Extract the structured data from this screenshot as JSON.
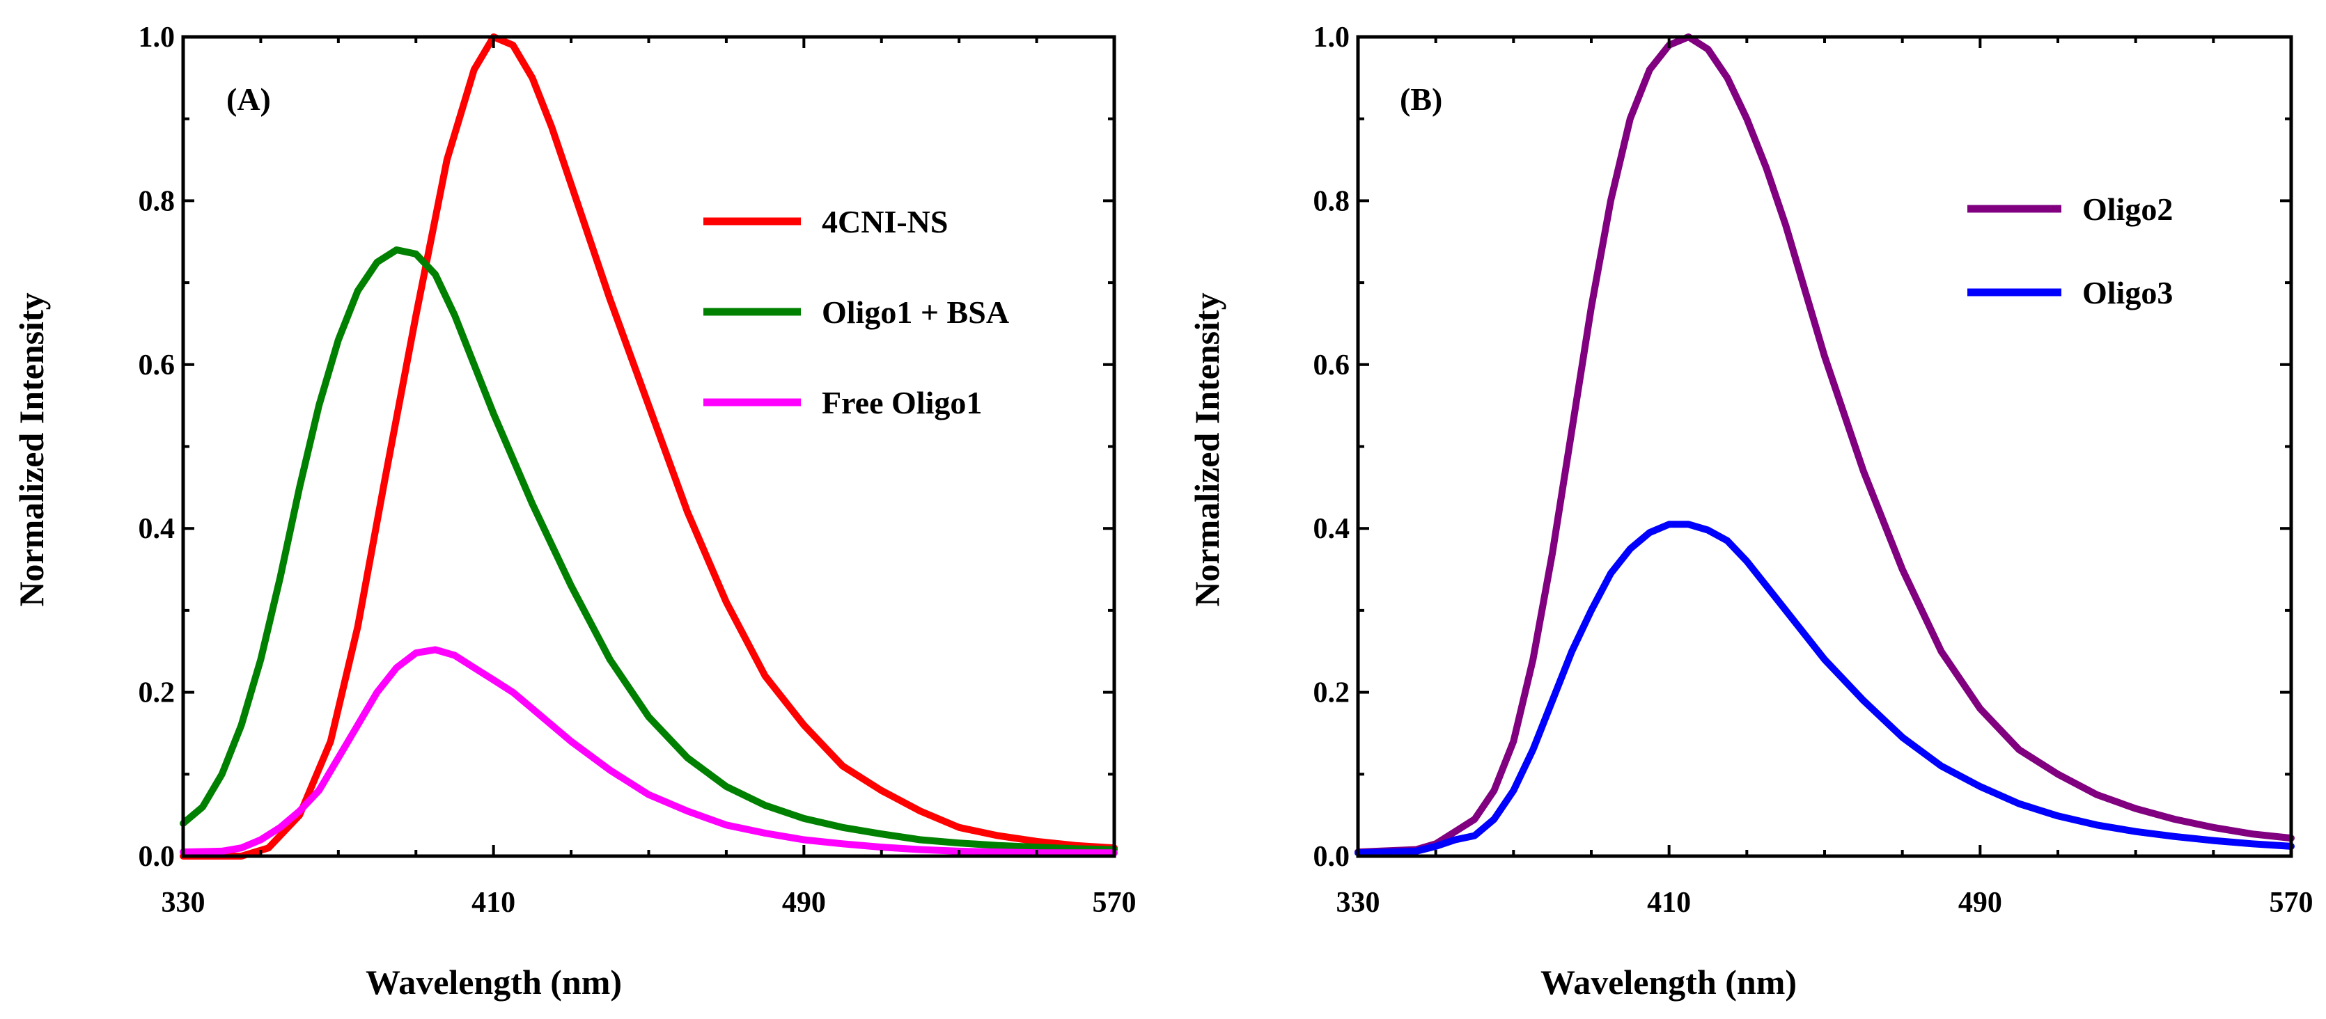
{
  "chart_data": [
    {
      "type": "line",
      "panel_label": "(A)",
      "xlabel": "Wavelength (nm)",
      "ylabel": "Normalized Intensity",
      "xlim": [
        330,
        570
      ],
      "ylim": [
        0,
        1.0
      ],
      "x_ticks": [
        "330",
        "410",
        "490",
        "570"
      ],
      "y_ticks": [
        "0.0",
        "0.2",
        "0.4",
        "0.6",
        "0.8",
        "1.0"
      ],
      "legend_position": "top-right",
      "series": [
        {
          "name": "4CNI-NS",
          "color": "#ff0000",
          "x": [
            330,
            345,
            352,
            360,
            368,
            375,
            382,
            390,
            398,
            405,
            410,
            415,
            420,
            425,
            430,
            440,
            450,
            460,
            470,
            480,
            490,
            500,
            510,
            520,
            530,
            540,
            550,
            560,
            570
          ],
          "y": [
            0.0,
            0.0,
            0.01,
            0.05,
            0.14,
            0.28,
            0.46,
            0.66,
            0.85,
            0.96,
            1.0,
            0.99,
            0.95,
            0.89,
            0.82,
            0.68,
            0.55,
            0.42,
            0.31,
            0.22,
            0.16,
            0.11,
            0.08,
            0.055,
            0.035,
            0.025,
            0.018,
            0.013,
            0.01
          ]
        },
        {
          "name": "Oligo1 + BSA",
          "color": "#008000",
          "x": [
            330,
            335,
            340,
            345,
            350,
            355,
            360,
            365,
            370,
            375,
            380,
            385,
            390,
            395,
            400,
            405,
            410,
            420,
            430,
            440,
            450,
            460,
            470,
            480,
            490,
            500,
            510,
            520,
            530,
            540,
            550,
            560,
            570
          ],
          "y": [
            0.04,
            0.06,
            0.1,
            0.16,
            0.24,
            0.34,
            0.45,
            0.55,
            0.63,
            0.69,
            0.725,
            0.74,
            0.735,
            0.71,
            0.66,
            0.6,
            0.54,
            0.43,
            0.33,
            0.24,
            0.17,
            0.12,
            0.085,
            0.062,
            0.046,
            0.035,
            0.027,
            0.02,
            0.016,
            0.013,
            0.011,
            0.009,
            0.008
          ]
        },
        {
          "name": "Free Oligo1",
          "color": "#ff00ff",
          "x": [
            330,
            340,
            345,
            350,
            355,
            360,
            365,
            370,
            375,
            380,
            385,
            390,
            395,
            400,
            405,
            410,
            415,
            420,
            430,
            440,
            450,
            460,
            470,
            480,
            490,
            500,
            510,
            520,
            530,
            540,
            550,
            560,
            570
          ],
          "y": [
            0.005,
            0.006,
            0.01,
            0.02,
            0.035,
            0.055,
            0.08,
            0.12,
            0.16,
            0.2,
            0.23,
            0.248,
            0.252,
            0.245,
            0.23,
            0.215,
            0.2,
            0.18,
            0.14,
            0.105,
            0.075,
            0.055,
            0.038,
            0.028,
            0.02,
            0.015,
            0.011,
            0.008,
            0.006,
            0.005,
            0.004,
            0.004,
            0.004
          ]
        }
      ]
    },
    {
      "type": "line",
      "panel_label": "(B)",
      "xlabel": "Wavelength (nm)",
      "ylabel": "Normalized Intensity",
      "xlim": [
        330,
        570
      ],
      "ylim": [
        0,
        1.0
      ],
      "x_ticks": [
        "330",
        "410",
        "490",
        "570"
      ],
      "y_ticks": [
        "0.0",
        "0.2",
        "0.4",
        "0.6",
        "0.8",
        "1.0"
      ],
      "legend_position": "top-right",
      "series": [
        {
          "name": "Oligo2",
          "color": "#800080",
          "x": [
            330,
            345,
            350,
            355,
            360,
            365,
            370,
            375,
            380,
            385,
            390,
            395,
            400,
            405,
            410,
            415,
            420,
            425,
            430,
            435,
            440,
            445,
            450,
            460,
            470,
            480,
            490,
            500,
            510,
            520,
            530,
            540,
            550,
            560,
            570
          ],
          "y": [
            0.005,
            0.008,
            0.015,
            0.03,
            0.045,
            0.08,
            0.14,
            0.24,
            0.37,
            0.52,
            0.67,
            0.8,
            0.9,
            0.96,
            0.99,
            1.0,
            0.985,
            0.95,
            0.9,
            0.84,
            0.77,
            0.69,
            0.61,
            0.47,
            0.35,
            0.25,
            0.18,
            0.13,
            0.1,
            0.075,
            0.058,
            0.045,
            0.035,
            0.027,
            0.022
          ]
        },
        {
          "name": "Oligo3",
          "color": "#0000ff",
          "x": [
            330,
            345,
            350,
            355,
            360,
            365,
            370,
            375,
            380,
            385,
            390,
            395,
            400,
            405,
            410,
            415,
            420,
            425,
            430,
            435,
            440,
            445,
            450,
            460,
            470,
            480,
            490,
            500,
            510,
            520,
            530,
            540,
            550,
            560,
            570
          ],
          "y": [
            0.004,
            0.006,
            0.012,
            0.02,
            0.025,
            0.045,
            0.08,
            0.13,
            0.19,
            0.25,
            0.3,
            0.345,
            0.375,
            0.395,
            0.405,
            0.405,
            0.398,
            0.385,
            0.36,
            0.33,
            0.3,
            0.27,
            0.24,
            0.19,
            0.145,
            0.11,
            0.085,
            0.064,
            0.049,
            0.038,
            0.03,
            0.024,
            0.019,
            0.015,
            0.012
          ]
        }
      ]
    }
  ]
}
